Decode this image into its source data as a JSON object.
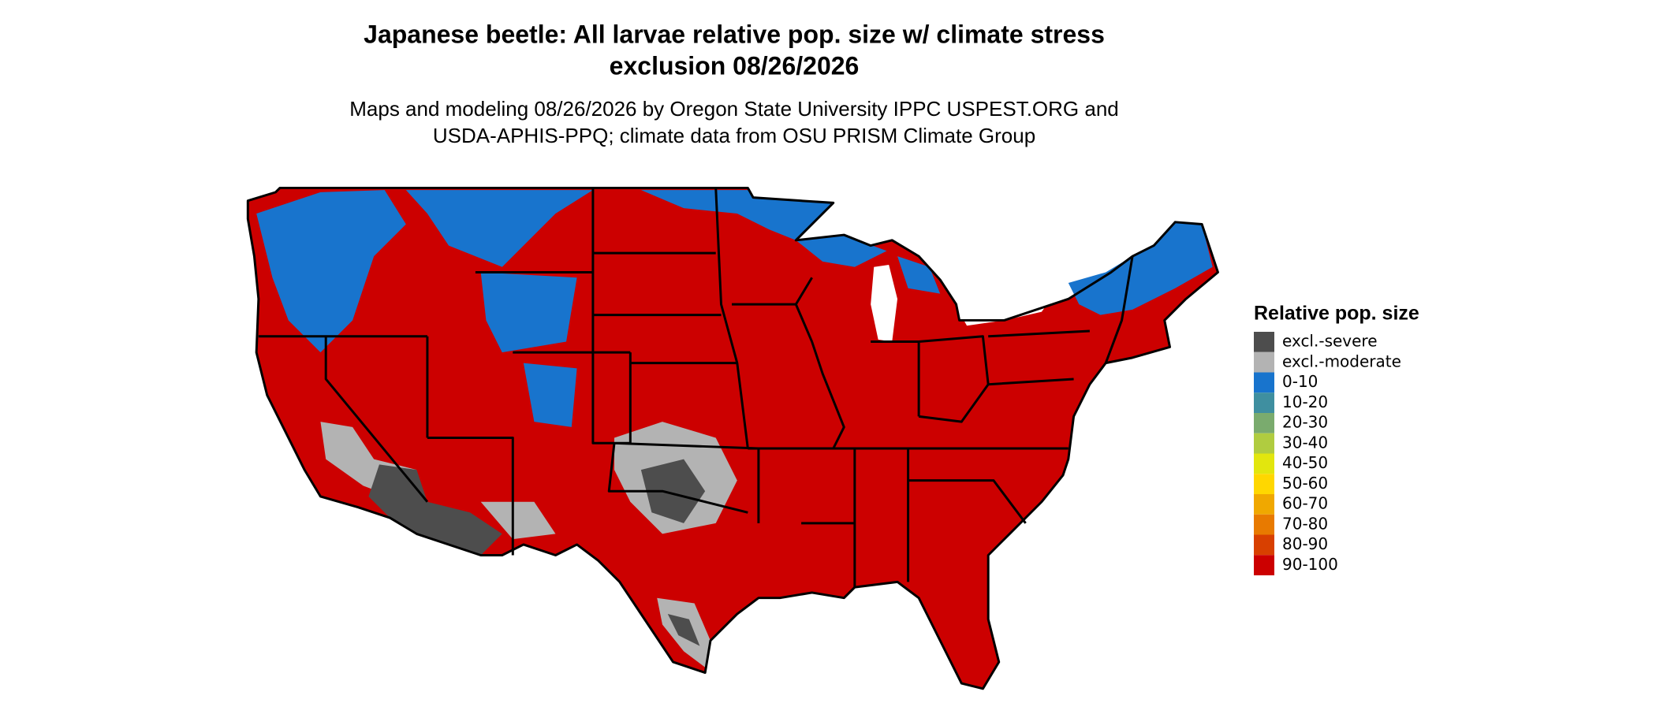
{
  "header": {
    "title_lines": [
      "Japanese beetle: All larvae relative pop. size w/ climate stress",
      "exclusion 08/26/2026"
    ],
    "subtitle_lines": [
      "Maps and modeling 08/26/2026 by Oregon State University IPPC USPEST.ORG and",
      "USDA-APHIS-PPQ; climate data from OSU PRISM Climate Group"
    ]
  },
  "legend": {
    "title": "Relative pop. size",
    "items": [
      {
        "label": "excl.-severe",
        "color": "#4d4d4d"
      },
      {
        "label": "excl.-moderate",
        "color": "#b3b3b3"
      },
      {
        "label": "0-10",
        "color": "#1874cd"
      },
      {
        "label": "10-20",
        "color": "#3f8fa0"
      },
      {
        "label": "20-30",
        "color": "#7aab6e"
      },
      {
        "label": "30-40",
        "color": "#b0cc40"
      },
      {
        "label": "40-50",
        "color": "#e2e60e"
      },
      {
        "label": "50-60",
        "color": "#ffd700"
      },
      {
        "label": "60-70",
        "color": "#f0a800"
      },
      {
        "label": "70-80",
        "color": "#e87a00"
      },
      {
        "label": "80-90",
        "color": "#d84000"
      },
      {
        "label": "90-100",
        "color": "#cc0000"
      }
    ]
  }
}
